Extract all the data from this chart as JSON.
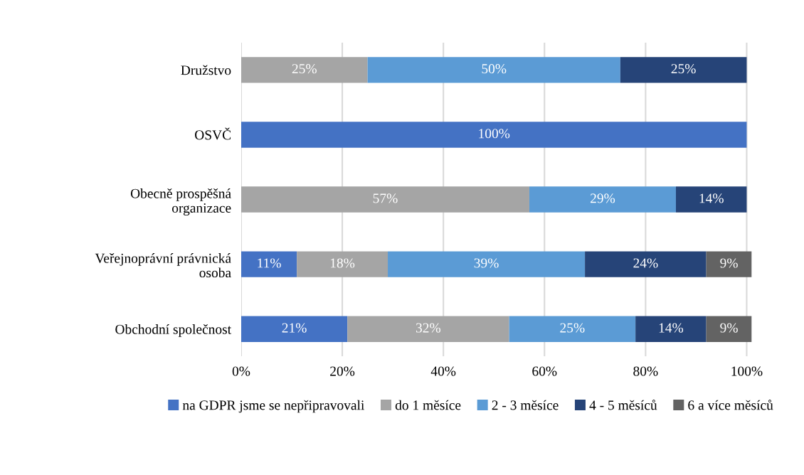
{
  "chart_data": {
    "type": "bar",
    "orientation": "horizontal",
    "stacked": true,
    "categories": [
      "Družstvo",
      "OSVČ",
      "Obecně prospěšná\norganizace",
      "Veřejnoprávní právnická\nosoba",
      "Obchodní společnost"
    ],
    "series": [
      {
        "name": "na GDPR jsme se nepřipravovali",
        "color": "#4472c4",
        "values": [
          null,
          100,
          null,
          11,
          21
        ],
        "value_labels": [
          null,
          "100%",
          null,
          "11%",
          "21%"
        ]
      },
      {
        "name": "do 1 měsíce",
        "color": "#a5a5a5",
        "values": [
          25,
          null,
          57,
          18,
          32
        ],
        "value_labels": [
          "25%",
          null,
          "57%",
          "18%",
          "32%"
        ]
      },
      {
        "name": "2 - 3 měsíce",
        "color": "#5b9bd5",
        "values": [
          50,
          null,
          29,
          39,
          25
        ],
        "value_labels": [
          "50%",
          null,
          "29%",
          "39%",
          "25%"
        ]
      },
      {
        "name": "4 - 5 měsíců",
        "color": "#264478",
        "values": [
          25,
          null,
          14,
          24,
          14
        ],
        "value_labels": [
          "25%",
          null,
          "14%",
          "24%",
          "14%"
        ]
      },
      {
        "name": "6 a více měsíců",
        "color": "#636363",
        "values": [
          null,
          null,
          null,
          9,
          9
        ],
        "value_labels": [
          null,
          null,
          null,
          "9%",
          "9%"
        ]
      }
    ],
    "xlim": [
      0,
      101
    ],
    "xticks": [
      {
        "value": 0,
        "label": "0%"
      },
      {
        "value": 20,
        "label": "20%"
      },
      {
        "value": 40,
        "label": "40%"
      },
      {
        "value": 60,
        "label": "60%"
      },
      {
        "value": 80,
        "label": "80%"
      },
      {
        "value": 100,
        "label": "100%"
      }
    ],
    "grid": "x",
    "legend": "bottom"
  }
}
